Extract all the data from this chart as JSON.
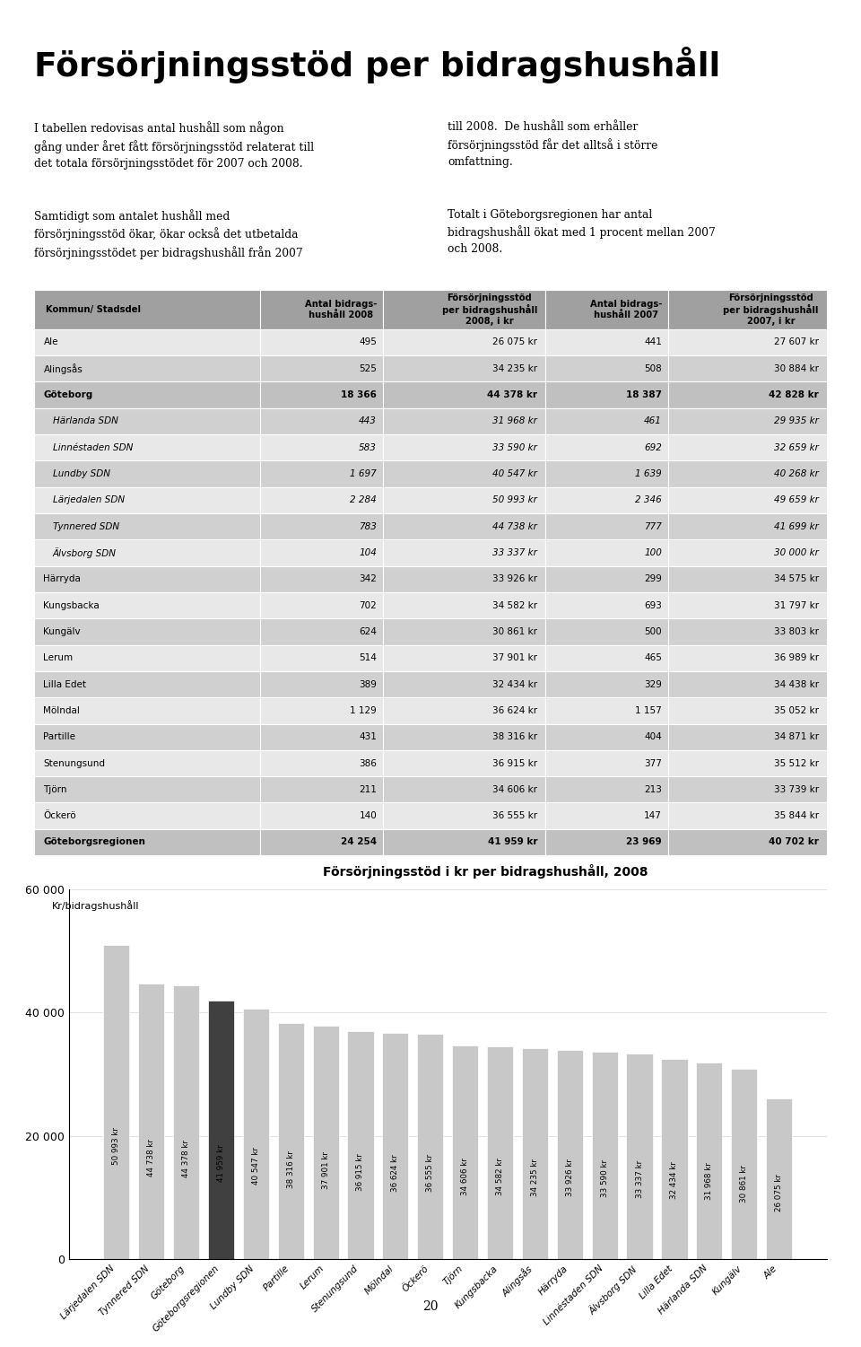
{
  "title": "Försörjningsstöd per bidragshushåll",
  "text_left_1": "I tabellen redovisas antal hushåll som någon\ngång under året fått försörjningsstöd relaterat till\ndet totala försörjningsstödet för 2007 och 2008.",
  "text_right_1": "till 2008.  De hushåll som erhåller\nförsörjningsstöd får det alltså i större\nomfattning.",
  "text_left_2": "Samtidigt som antalet hushåll med\nförsörjningsstöd ökar, ökar också det utbetalda\nförsörjningsstödet per bidragshushåll från 2007",
  "text_right_2": "Totalt i Göteborgsregionen har antal\nbidragshushåll ökat med 1 procent mellan 2007\noch 2008.",
  "table_header": [
    "Kommun/ Stadsdel",
    "Antal bidrags-\nhushåll 2008",
    "Försörjningsstöd\nper bidragshushåll\n2008, i kr",
    "Antal bidrags-\nhushåll 2007",
    "Försörjningsstöd\nper bidragshushåll\n2007, i kr"
  ],
  "table_data": [
    [
      "Ale",
      "495",
      "26 075 kr",
      "441",
      "27 607 kr",
      false,
      false
    ],
    [
      "Alingsås",
      "525",
      "34 235 kr",
      "508",
      "30 884 kr",
      false,
      false
    ],
    [
      "Göteborg",
      "18 366",
      "44 378 kr",
      "18 387",
      "42 828 kr",
      false,
      true
    ],
    [
      "Härlanda SDN",
      "443",
      "31 968 kr",
      "461",
      "29 935 kr",
      true,
      false
    ],
    [
      "Linnéstaden SDN",
      "583",
      "33 590 kr",
      "692",
      "32 659 kr",
      true,
      false
    ],
    [
      "Lundby SDN",
      "1 697",
      "40 547 kr",
      "1 639",
      "40 268 kr",
      true,
      false
    ],
    [
      "Lärjedalen SDN",
      "2 284",
      "50 993 kr",
      "2 346",
      "49 659 kr",
      true,
      false
    ],
    [
      "Tynnered SDN",
      "783",
      "44 738 kr",
      "777",
      "41 699 kr",
      true,
      false
    ],
    [
      "Älvsborg SDN",
      "104",
      "33 337 kr",
      "100",
      "30 000 kr",
      true,
      false
    ],
    [
      "Härryda",
      "342",
      "33 926 kr",
      "299",
      "34 575 kr",
      false,
      false
    ],
    [
      "Kungsbacka",
      "702",
      "34 582 kr",
      "693",
      "31 797 kr",
      false,
      false
    ],
    [
      "Kungälv",
      "624",
      "30 861 kr",
      "500",
      "33 803 kr",
      false,
      false
    ],
    [
      "Lerum",
      "514",
      "37 901 kr",
      "465",
      "36 989 kr",
      false,
      false
    ],
    [
      "Lilla Edet",
      "389",
      "32 434 kr",
      "329",
      "34 438 kr",
      false,
      false
    ],
    [
      "Mölndal",
      "1 129",
      "36 624 kr",
      "1 157",
      "35 052 kr",
      false,
      false
    ],
    [
      "Partille",
      "431",
      "38 316 kr",
      "404",
      "34 871 kr",
      false,
      false
    ],
    [
      "Stenungsund",
      "386",
      "36 915 kr",
      "377",
      "35 512 kr",
      false,
      false
    ],
    [
      "Tjörn",
      "211",
      "34 606 kr",
      "213",
      "33 739 kr",
      false,
      false
    ],
    [
      "Öckerö",
      "140",
      "36 555 kr",
      "147",
      "35 844 kr",
      false,
      false
    ],
    [
      "Göteborgsregionen",
      "24 254",
      "41 959 kr",
      "23 969",
      "40 702 kr",
      false,
      true
    ]
  ],
  "chart_title": "Försörjningsstöd i kr per bidragshushåll, 2008",
  "chart_ylabel": "Kr/bidragshushåll",
  "chart_categories": [
    "Lärjedalen SDN",
    "Tynnered SDN",
    "Göteborg",
    "Göteborgsregionen",
    "Lundby SDN",
    "Partille",
    "Lerum",
    "Stenungsund",
    "Mölndal",
    "Öckerö",
    "Tjörn",
    "Kungsbacka",
    "Alingsås",
    "Härryda",
    "Linnéstaden SDN",
    "Älvsborg SDN",
    "Lilla Edet",
    "Härlanda SDN",
    "Kungälv",
    "Ale"
  ],
  "chart_values": [
    50993,
    44738,
    44378,
    41959,
    40547,
    38316,
    37901,
    36915,
    36624,
    36555,
    34606,
    34582,
    34235,
    33926,
    33590,
    33337,
    32434,
    31968,
    30861,
    26075
  ],
  "chart_labels": [
    "50 993 kr",
    "44 738 kr",
    "44 378 kr",
    "41 959 kr",
    "40 547 kr",
    "38 316 kr",
    "37 901 kr",
    "36 915 kr",
    "36 624 kr",
    "36 555 kr",
    "34 606 kr",
    "34 582 kr",
    "34 235 kr",
    "33 926 kr",
    "33 590 kr",
    "33 337 kr",
    "32 434 kr",
    "31 968 kr",
    "30 861 kr",
    "26 075 kr"
  ],
  "chart_colors": [
    "#c8c8c8",
    "#c8c8c8",
    "#c8c8c8",
    "#404040",
    "#c8c8c8",
    "#c8c8c8",
    "#c8c8c8",
    "#c8c8c8",
    "#c8c8c8",
    "#c8c8c8",
    "#c8c8c8",
    "#c8c8c8",
    "#c8c8c8",
    "#c8c8c8",
    "#c8c8c8",
    "#c8c8c8",
    "#c8c8c8",
    "#c8c8c8",
    "#c8c8c8",
    "#c8c8c8"
  ],
  "ylim": [
    0,
    60000
  ],
  "yticks": [
    0,
    20000,
    40000,
    60000
  ],
  "page_number": "20",
  "bg_color": "#ffffff",
  "table_header_bg": "#a0a0a0",
  "table_row_light": "#e8e8e8",
  "table_row_dark": "#d0d0d0",
  "table_bold_bg": "#c0c0c0",
  "top_line_color": "#888888",
  "bottom_line_color": "#cc0000"
}
